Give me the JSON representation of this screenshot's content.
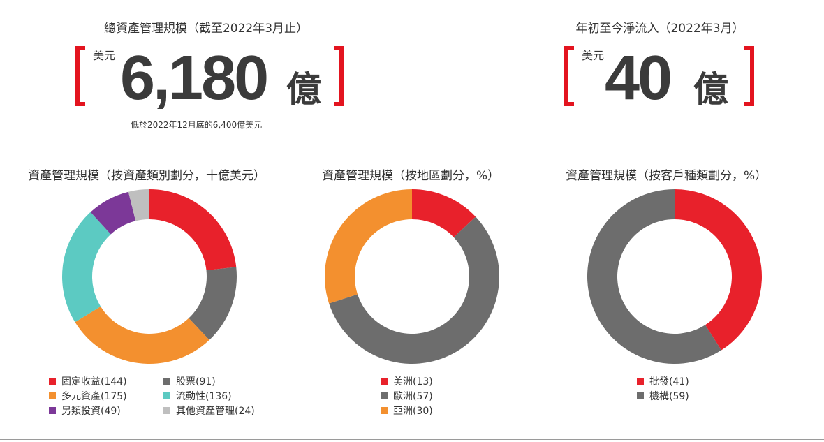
{
  "aum": {
    "title": "總資產管理規模（截至2022年3月止）",
    "unit": "美元",
    "value": "6,180",
    "suffix": "億",
    "note": "低於2022年12月底的6,400億美元"
  },
  "inflow": {
    "title": "年初至今淨流入（2022年3月）",
    "unit": "美元",
    "value": "40",
    "suffix": "億"
  },
  "accent_color": "#e3141f",
  "chart_data": [
    {
      "type": "pie",
      "donut": true,
      "title": "資產管理規模（按資產類別劃分，十億美元）",
      "categories": [
        "固定收益",
        "股票",
        "多元資產",
        "流動性",
        "另類投資",
        "其他資產管理"
      ],
      "values": [
        144,
        91,
        175,
        136,
        49,
        24
      ],
      "colors": [
        "#e8212b",
        "#6d6d6d",
        "#f3902f",
        "#5ccac2",
        "#7c3898",
        "#bfbfbf"
      ],
      "legend_labels": [
        "固定收益(144)",
        "股票(91)",
        "多元資產(175)",
        "流動性(136)",
        "另類投資(49)",
        "其他資產管理(24)"
      ],
      "legend": "bottom"
    },
    {
      "type": "pie",
      "donut": true,
      "title": "資產管理規模（按地區劃分，%）",
      "categories": [
        "美洲",
        "歐洲",
        "亞洲"
      ],
      "values": [
        13,
        57,
        30
      ],
      "colors": [
        "#e8212b",
        "#6d6d6d",
        "#f3902f"
      ],
      "legend_labels": [
        "美洲(13)",
        "歐洲(57)",
        "亞洲(30)"
      ],
      "legend": "bottom"
    },
    {
      "type": "pie",
      "donut": true,
      "title": "資產管理規模（按客戶種類劃分，%）",
      "categories": [
        "批發",
        "機構"
      ],
      "values": [
        41,
        59
      ],
      "colors": [
        "#e8212b",
        "#6d6d6d"
      ],
      "legend_labels": [
        "批發(41)",
        "機構(59)"
      ],
      "legend": "bottom"
    }
  ]
}
